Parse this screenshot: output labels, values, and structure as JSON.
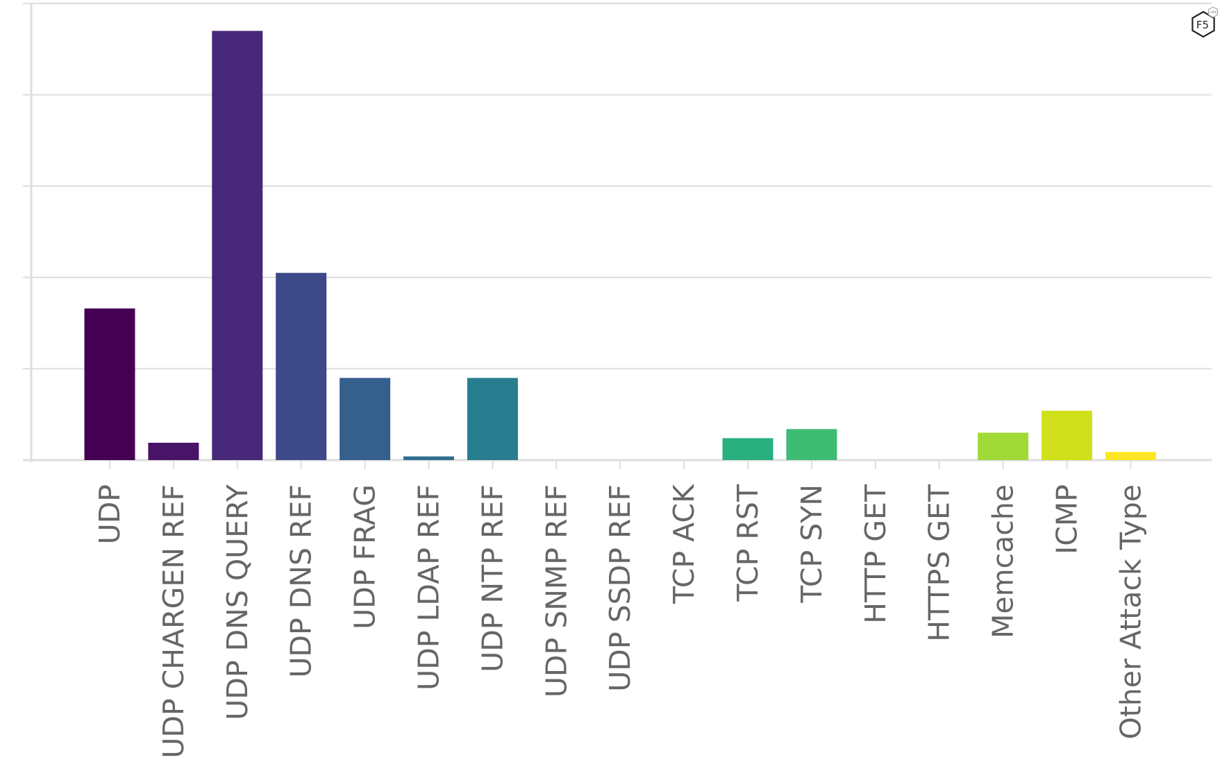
{
  "chart_data": {
    "type": "bar",
    "categories": [
      "UDP",
      "UDP CHARGEN REF",
      "UDP DNS QUERY",
      "UDP DNS REF",
      "UDP FRAG",
      "UDP LDAP REF",
      "UDP NTP REF",
      "UDP SNMP REF",
      "UDP SSDP REF",
      "TCP ACK",
      "TCP RST",
      "TCP SYN",
      "HTTP GET",
      "HTTPS GET",
      "Memcache",
      "ICMP",
      "Other Attack Type"
    ],
    "values": [
      1.66,
      0.19,
      4.7,
      2.05,
      0.9,
      0.04,
      0.9,
      0,
      0,
      0,
      0.24,
      0.34,
      0,
      0,
      0.3,
      0.54,
      0.09
    ],
    "colors": [
      "#440154",
      "#481467",
      "#482878",
      "#3e4989",
      "#355f8d",
      "#2e6e8e",
      "#287d8e",
      "#228d8d",
      "#1f9a8a",
      "#1fa187",
      "#2ab07f",
      "#3fbc73",
      "#5ec962",
      "#7ad151",
      "#a0da39",
      "#d0e11c",
      "#fde725"
    ],
    "ylim": [
      0,
      5
    ],
    "y_ticks": [
      0,
      1,
      2,
      3,
      4,
      5
    ],
    "y_tick_labels_shown": false,
    "grid": "horizontal",
    "legend": "none",
    "title": "",
    "xlabel": "",
    "ylabel": ""
  },
  "logo": {
    "text": "F5",
    "small_text": "LABS"
  }
}
